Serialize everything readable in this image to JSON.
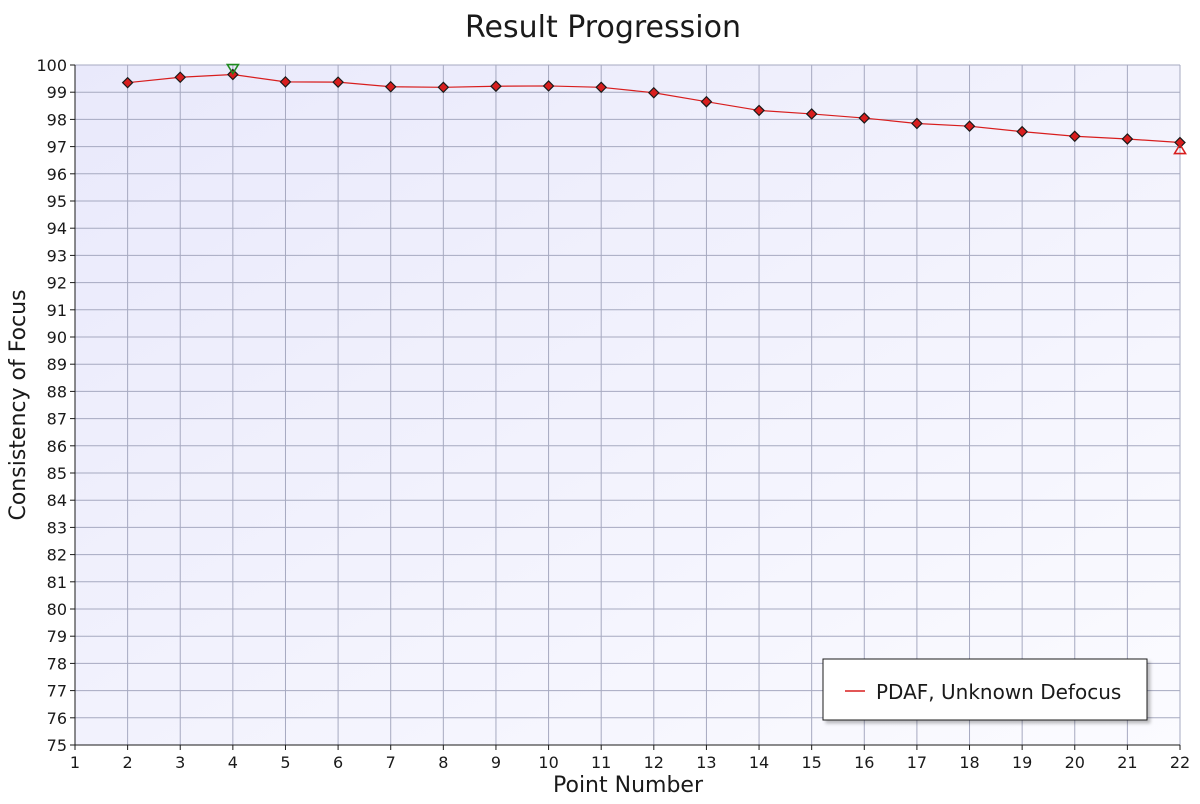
{
  "chart_data": {
    "type": "line",
    "title": "Result Progression",
    "xlabel": "Point Number",
    "ylabel": "Consistency of Focus",
    "xlim": [
      1,
      22
    ],
    "ylim": [
      75,
      100
    ],
    "x_ticks": [
      "1",
      "2",
      "3",
      "4",
      "5",
      "6",
      "7",
      "8",
      "9",
      "10",
      "11",
      "12",
      "13",
      "14",
      "15",
      "16",
      "17",
      "18",
      "19",
      "20",
      "21",
      "22"
    ],
    "y_ticks": [
      "75",
      "76",
      "77",
      "78",
      "79",
      "80",
      "81",
      "82",
      "83",
      "84",
      "85",
      "86",
      "87",
      "88",
      "89",
      "90",
      "91",
      "92",
      "93",
      "94",
      "95",
      "96",
      "97",
      "98",
      "99",
      "100"
    ],
    "grid": true,
    "legend_position": "bottom-right",
    "series": [
      {
        "name": "PDAF, Unknown Defocus",
        "color": "#d81e1e",
        "marker": "diamond",
        "x": [
          2,
          3,
          4,
          5,
          6,
          7,
          8,
          9,
          10,
          11,
          12,
          13,
          14,
          15,
          16,
          17,
          18,
          19,
          20,
          21,
          22
        ],
        "y": [
          99.35,
          99.55,
          99.65,
          99.38,
          99.37,
          99.2,
          99.18,
          99.22,
          99.23,
          99.18,
          98.98,
          98.65,
          98.33,
          98.2,
          98.05,
          97.85,
          97.75,
          97.55,
          97.38,
          97.28,
          97.15
        ]
      }
    ],
    "annotations": [
      {
        "type": "max-marker",
        "shape": "triangle-down",
        "color": "#1f8a1f",
        "x": 4,
        "y": 99.65
      },
      {
        "type": "min-marker",
        "shape": "triangle-up",
        "color": "#d81e1e",
        "x": 22,
        "y": 97.15
      }
    ]
  }
}
